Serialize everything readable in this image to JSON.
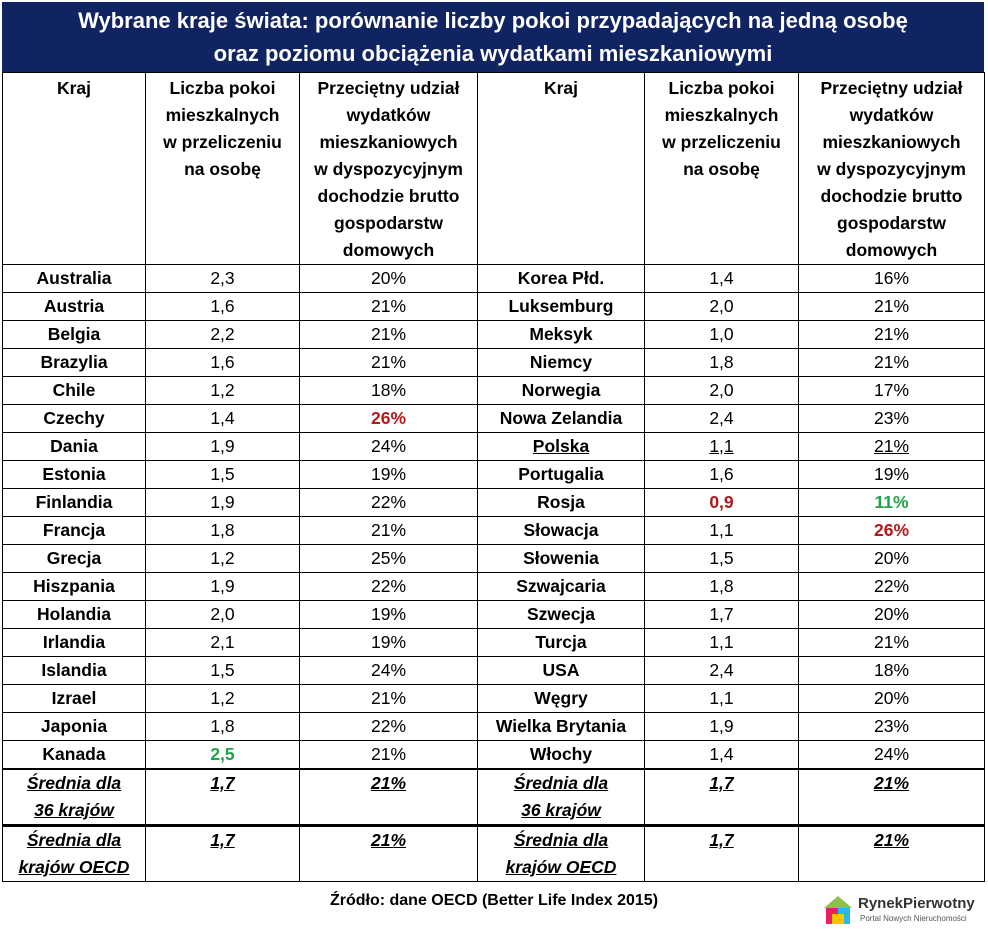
{
  "title": {
    "line1": "Wybrane kraje świata: porównanie liczby pokoi przypadających na jedną osobę",
    "line2": "oraz poziomu obciążenia wydatkami mieszkaniowymi"
  },
  "headers": {
    "country": "Kraj",
    "rooms": [
      "Liczba pokoi",
      "mieszkalnych",
      "w przeliczeniu",
      "na osobę"
    ],
    "share": [
      "Przeciętny udział",
      "wydatków",
      "mieszkaniowych",
      "w dyspozycyjnym",
      "dochodzie brutto",
      "gospodarstw",
      "domowych"
    ]
  },
  "colors": {
    "title_bg": "#0f2461",
    "high": "#b01b1b",
    "low": "#22a04a"
  },
  "rows": [
    {
      "left": {
        "country": "Australia",
        "rooms": "2,3",
        "share": "20%"
      },
      "right": {
        "country": "Korea Płd.",
        "rooms": "1,4",
        "share": "16%"
      }
    },
    {
      "left": {
        "country": "Austria",
        "rooms": "1,6",
        "share": "21%"
      },
      "right": {
        "country": "Luksemburg",
        "rooms": "2,0",
        "share": "21%"
      }
    },
    {
      "left": {
        "country": "Belgia",
        "rooms": "2,2",
        "share": "21%"
      },
      "right": {
        "country": "Meksyk",
        "rooms": "1,0",
        "share": "21%"
      }
    },
    {
      "left": {
        "country": "Brazylia",
        "rooms": "1,6",
        "share": "21%"
      },
      "right": {
        "country": "Niemcy",
        "rooms": "1,8",
        "share": "21%"
      }
    },
    {
      "left": {
        "country": "Chile",
        "rooms": "1,2",
        "share": "18%"
      },
      "right": {
        "country": "Norwegia",
        "rooms": "2,0",
        "share": "17%"
      }
    },
    {
      "left": {
        "country": "Czechy",
        "rooms": "1,4",
        "share": "26%"
      },
      "right": {
        "country": "Nowa Zelandia",
        "rooms": "2,4",
        "share": "23%"
      }
    },
    {
      "left": {
        "country": "Dania",
        "rooms": "1,9",
        "share": "24%"
      },
      "right": {
        "country": "Polska",
        "rooms": "1,1",
        "share": "21%"
      }
    },
    {
      "left": {
        "country": "Estonia",
        "rooms": "1,5",
        "share": "19%"
      },
      "right": {
        "country": "Portugalia",
        "rooms": "1,6",
        "share": "19%"
      }
    },
    {
      "left": {
        "country": "Finlandia",
        "rooms": "1,9",
        "share": "22%"
      },
      "right": {
        "country": "Rosja",
        "rooms": "0,9",
        "share": "11%"
      }
    },
    {
      "left": {
        "country": "Francja",
        "rooms": "1,8",
        "share": "21%"
      },
      "right": {
        "country": "Słowacja",
        "rooms": "1,1",
        "share": "26%"
      }
    },
    {
      "left": {
        "country": "Grecja",
        "rooms": "1,2",
        "share": "25%"
      },
      "right": {
        "country": "Słowenia",
        "rooms": "1,5",
        "share": "20%"
      }
    },
    {
      "left": {
        "country": "Hiszpania",
        "rooms": "1,9",
        "share": "22%"
      },
      "right": {
        "country": "Szwajcaria",
        "rooms": "1,8",
        "share": "22%"
      }
    },
    {
      "left": {
        "country": "Holandia",
        "rooms": "2,0",
        "share": "19%"
      },
      "right": {
        "country": "Szwecja",
        "rooms": "1,7",
        "share": "20%"
      }
    },
    {
      "left": {
        "country": "Irlandia",
        "rooms": "2,1",
        "share": "19%"
      },
      "right": {
        "country": "Turcja",
        "rooms": "1,1",
        "share": "21%"
      }
    },
    {
      "left": {
        "country": "Islandia",
        "rooms": "1,5",
        "share": "24%"
      },
      "right": {
        "country": "USA",
        "rooms": "2,4",
        "share": "18%"
      }
    },
    {
      "left": {
        "country": "Izrael",
        "rooms": "1,2",
        "share": "21%"
      },
      "right": {
        "country": "Węgry",
        "rooms": "1,1",
        "share": "20%"
      }
    },
    {
      "left": {
        "country": "Japonia",
        "rooms": "1,8",
        "share": "22%"
      },
      "right": {
        "country": "Wielka Brytania",
        "rooms": "1,9",
        "share": "23%"
      }
    },
    {
      "left": {
        "country": "Kanada",
        "rooms": "2,5",
        "share": "21%"
      },
      "right": {
        "country": "Włochy",
        "rooms": "1,4",
        "share": "24%"
      }
    }
  ],
  "averages": [
    {
      "label": [
        "Średnia dla",
        "36 krajów"
      ],
      "rooms": "1,7",
      "share": "21%"
    },
    {
      "label": [
        "Średnia dla",
        "krajów OECD"
      ],
      "rooms": "1,7",
      "share": "21%"
    }
  ],
  "source": "Źródło: dane OECD (Better Life Index 2015)",
  "logo": {
    "name": "RynekPierwotny",
    "subtitle": "Portal Nowych Nieruchomości"
  }
}
